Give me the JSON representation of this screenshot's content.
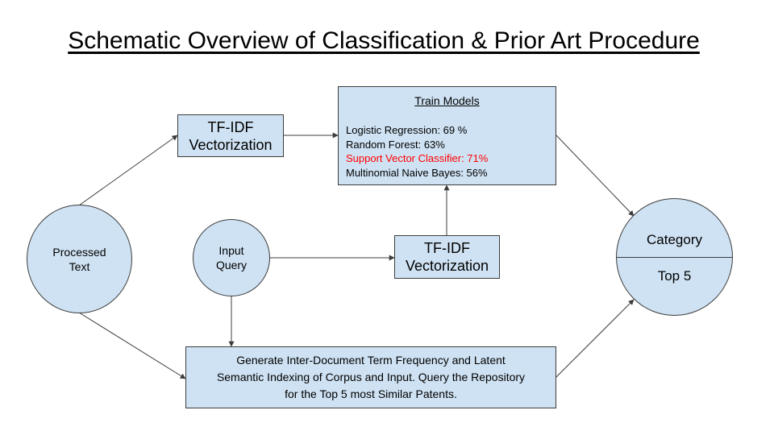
{
  "title": "Schematic Overview of Classification & Prior Art Procedure",
  "nodes": {
    "processed_text": {
      "line1": "Processed",
      "line2": "Text"
    },
    "tfidf_top": {
      "line1": "TF-IDF",
      "line2": "Vectorization"
    },
    "train_models": {
      "header": "Train Models",
      "models": [
        {
          "text": "Logistic Regression: 69 %",
          "highlight": false
        },
        {
          "text": "Random Forest: 63%",
          "highlight": false
        },
        {
          "text": "Support Vector Classifier: 71%",
          "highlight": true
        },
        {
          "text": "Multinomial Naive Bayes: 56%",
          "highlight": false
        }
      ]
    },
    "input_query": {
      "line1": "Input",
      "line2": "Query"
    },
    "tfidf_mid": {
      "line1": "TF-IDF",
      "line2": "Vectorization"
    },
    "lsi_box": {
      "line1": "Generate Inter-Document Term Frequency and Latent",
      "line2": "Semantic Indexing of Corpus and Input. Query the Repository",
      "line3": "for the Top 5 most Similar Patents."
    },
    "output": {
      "top": "Category",
      "bottom": "Top 5"
    }
  },
  "colors": {
    "node_fill": "#cfe2f3",
    "stroke": "#3c3c3c",
    "highlight": "#ff0000"
  }
}
